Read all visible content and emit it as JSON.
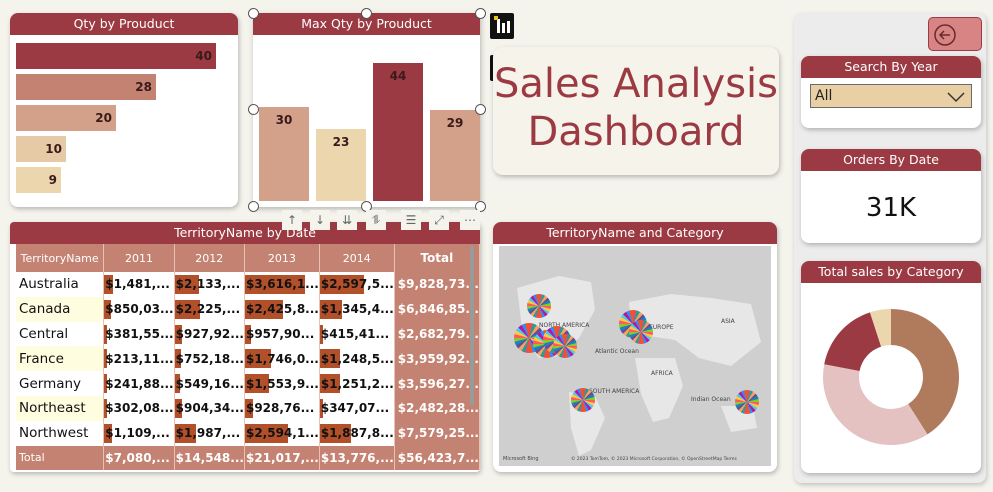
{
  "qty_by_product": {
    "title": "Qty by Prouduct",
    "bars": [
      {
        "value": 40,
        "color": "#9b3a42"
      },
      {
        "value": 28,
        "color": "#c48272"
      },
      {
        "value": 20,
        "color": "#d3a089"
      },
      {
        "value": 10,
        "color": "#e6caa6"
      },
      {
        "value": 9,
        "color": "#ecd6ad"
      }
    ]
  },
  "max_qty_by_product": {
    "title": "Max Qty by Prouduct",
    "bars": [
      {
        "value": 30,
        "color": "#d3a089"
      },
      {
        "value": 23,
        "color": "#ecd6ad"
      },
      {
        "value": 44,
        "color": "#9b3a42"
      },
      {
        "value": 29,
        "color": "#d3a089"
      }
    ]
  },
  "title": {
    "line1": "Sales Analysis",
    "line2": "Dashboard"
  },
  "search_by_year": {
    "title": "Search By Year",
    "selected": "All"
  },
  "orders_by_date": {
    "title": "Orders By Date",
    "value": "31K"
  },
  "total_sales_by_category": {
    "title": "Total sales by Category",
    "slices": [
      {
        "value": 41,
        "color": "#b07a5c"
      },
      {
        "value": 37,
        "color": "#e4c2c2"
      },
      {
        "value": 17,
        "color": "#9b3a42"
      },
      {
        "value": 5,
        "color": "#ecd6ad"
      }
    ]
  },
  "territory_table": {
    "title": "TerritoryName by Date",
    "columns": [
      "TerritoryName",
      "2011",
      "2012",
      "2013",
      "2014",
      "Total"
    ],
    "rows": [
      {
        "name": "Australia",
        "cells": [
          "$1,481,...",
          "$2,133,...",
          "$3,616,1...",
          "$2,597,5..."
        ],
        "bars": [
          0.14,
          0.38,
          0.95,
          0.7
        ],
        "total": "$9,828,73..."
      },
      {
        "name": "Canada",
        "cells": [
          "$850,03...",
          "$2,225,...",
          "$2,425,8...",
          "$1,345,4..."
        ],
        "bars": [
          0.1,
          0.4,
          0.6,
          0.35
        ],
        "total": "$6,846,85..."
      },
      {
        "name": "Central",
        "cells": [
          "$381,55...",
          "$927,92...",
          "$957,90...",
          "$415,41..."
        ],
        "bars": [
          0.05,
          0.12,
          0.1,
          0.05
        ],
        "total": "$2,682,79..."
      },
      {
        "name": "France",
        "cells": [
          "$213,11...",
          "$752,18...",
          "$1,746,0...",
          "$1,248,5..."
        ],
        "bars": [
          0.04,
          0.1,
          0.42,
          0.32
        ],
        "total": "$3,959,92..."
      },
      {
        "name": "Germany",
        "cells": [
          "$241,88...",
          "$549,16...",
          "$1,553,9...",
          "$1,251,2..."
        ],
        "bars": [
          0.04,
          0.08,
          0.38,
          0.32
        ],
        "total": "$3,596,27..."
      },
      {
        "name": "Northeast",
        "cells": [
          "$302,08...",
          "$904,34...",
          "$928,76...",
          "$347,07..."
        ],
        "bars": [
          0.05,
          0.12,
          0.12,
          0.05
        ],
        "total": "$2,482,28..."
      },
      {
        "name": "Northwest",
        "cells": [
          "$1,109,...",
          "$1,987,...",
          "$2,594,1...",
          "$1,887,8..."
        ],
        "bars": [
          0.12,
          0.34,
          0.68,
          0.5
        ],
        "total": "$7,579,25..."
      }
    ],
    "total_row": {
      "name": "Total",
      "cells": [
        "$7,080,...",
        "$14,548...",
        "$21,017,...",
        "$13,776,..."
      ],
      "total": "$56,423,7..."
    }
  },
  "territory_map": {
    "title": "TerritoryName and Category",
    "labels": {
      "na": "NORTH AMERICA",
      "europe": "EUROPE",
      "asia": "ASIA",
      "africa": "AFRICA",
      "atlantic": "Atlantic Ocean",
      "sa": "SOUTH AMERICA",
      "indian": "Indian Ocean"
    },
    "attribution": "© 2023 TomTom, © 2023 Microsoft Corporation, © OpenStreetMap Terms",
    "brand": "Microsoft Bing"
  }
}
